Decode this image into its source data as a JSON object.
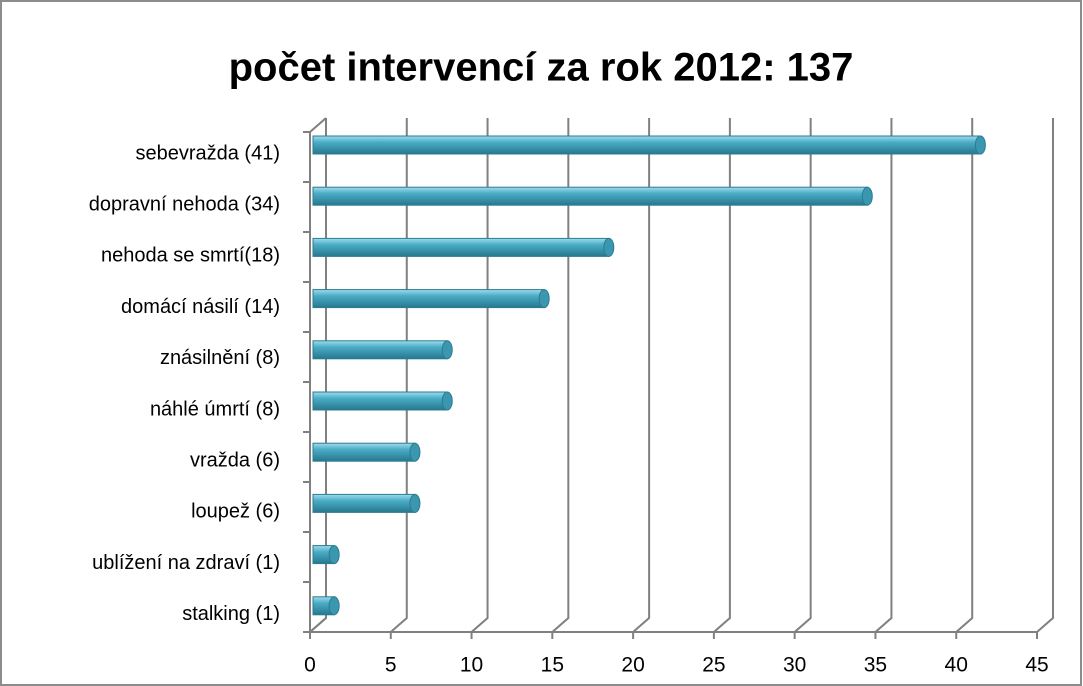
{
  "chart_data": {
    "type": "bar",
    "orientation": "horizontal",
    "title": "počet intervencí za rok 2012: 137",
    "categories": [
      "sebevražda (41)",
      "dopravní nehoda (34)",
      "nehoda se smrtí(18)",
      "domácí násilí (14)",
      "znásilnění (8)",
      "náhlé úmrtí (8)",
      "vražda (6)",
      "loupež (6)",
      "ublížení na zdraví (1)",
      "stalking (1)"
    ],
    "values": [
      41,
      34,
      18,
      14,
      8,
      8,
      6,
      6,
      1,
      1
    ],
    "color": "#4bacc6",
    "xlim": [
      0,
      45
    ],
    "xticks": [
      0,
      5,
      10,
      15,
      20,
      25,
      30,
      35,
      40,
      45
    ],
    "grid": true
  }
}
